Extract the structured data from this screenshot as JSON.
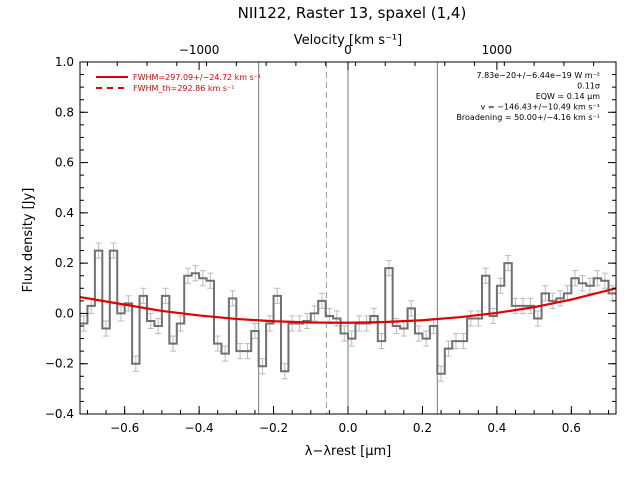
{
  "chart_data": {
    "type": "line",
    "title": "NII122, Raster 13, spaxel (1,4)",
    "xlabel": "λ−λrest [μm]",
    "ylabel": "Flux density [Jy]",
    "top_axis_label": "Velocity [km s⁻¹]",
    "xlim": [
      -0.72,
      0.72
    ],
    "ylim": [
      -0.4,
      1.0
    ],
    "x_ticks": [
      -0.6,
      -0.4,
      -0.2,
      0.0,
      0.2,
      0.4,
      0.6
    ],
    "x_tick_labels": [
      "−0.6",
      "−0.4",
      "−0.2",
      "0.0",
      "0.2",
      "0.4",
      "0.6"
    ],
    "y_ticks": [
      -0.4,
      -0.2,
      0.0,
      0.2,
      0.4,
      0.6,
      0.8,
      1.0
    ],
    "y_tick_labels": [
      "−0.4",
      "−0.2",
      "0.0",
      "0.2",
      "0.4",
      "0.6",
      "0.8",
      "1.0"
    ],
    "top_tick_labels": [
      "−1000",
      "0",
      "1000"
    ],
    "top_ticks_um": [
      -0.4,
      0.0,
      0.4
    ],
    "vertical_lines": [
      -0.24,
      0.0,
      0.24
    ],
    "dashed_line": -0.058,
    "legend": [
      {
        "label": "FWHM=297.09+/−24.72 km s⁻¹",
        "style": "solid",
        "color": "#e00000"
      },
      {
        "label": "FWHM_th=292.86 km s⁻¹",
        "style": "dashed",
        "color": "#e00000"
      }
    ],
    "annotations": [
      "7.83e−20+/−6.44e−19 W m⁻²",
      "0.11σ",
      "EQW = 0.14 μm",
      "v = −146.43+/−10.49 km s⁻¹",
      "Broadening = 50.00+/−4.16 km s⁻¹"
    ],
    "series": [
      {
        "name": "data",
        "style": "step",
        "color": "#707070",
        "x": [
          -0.71,
          -0.69,
          -0.67,
          -0.65,
          -0.63,
          -0.61,
          -0.59,
          -0.57,
          -0.55,
          -0.53,
          -0.51,
          -0.49,
          -0.47,
          -0.45,
          -0.43,
          -0.41,
          -0.39,
          -0.37,
          -0.35,
          -0.33,
          -0.31,
          -0.29,
          -0.27,
          -0.25,
          -0.23,
          -0.21,
          -0.19,
          -0.17,
          -0.15,
          -0.13,
          -0.11,
          -0.09,
          -0.07,
          -0.05,
          -0.03,
          -0.01,
          0.01,
          0.03,
          0.05,
          0.07,
          0.09,
          0.11,
          0.13,
          0.15,
          0.17,
          0.19,
          0.21,
          0.23,
          0.25,
          0.27,
          0.29,
          0.31,
          0.33,
          0.35,
          0.37,
          0.39,
          0.41,
          0.43,
          0.45,
          0.47,
          0.49,
          0.51,
          0.53,
          0.55,
          0.57,
          0.59,
          0.61,
          0.63,
          0.65,
          0.67,
          0.69,
          0.71
        ],
        "y": [
          -0.04,
          0.03,
          0.25,
          -0.06,
          0.25,
          0.0,
          0.04,
          -0.2,
          0.07,
          -0.03,
          -0.05,
          0.07,
          -0.12,
          -0.04,
          0.15,
          0.16,
          0.14,
          0.13,
          -0.12,
          -0.16,
          0.06,
          -0.15,
          -0.15,
          -0.07,
          -0.21,
          -0.04,
          0.07,
          -0.23,
          -0.04,
          -0.04,
          -0.03,
          0.0,
          0.05,
          -0.01,
          -0.02,
          -0.08,
          -0.1,
          -0.04,
          -0.04,
          -0.01,
          -0.11,
          0.18,
          -0.05,
          -0.06,
          0.02,
          -0.08,
          -0.1,
          -0.05,
          -0.24,
          -0.14,
          -0.11,
          -0.11,
          -0.02,
          -0.02,
          0.15,
          -0.01,
          0.11,
          0.2,
          0.03,
          0.03,
          0.03,
          -0.02,
          0.08,
          0.05,
          0.06,
          0.08,
          0.14,
          0.12,
          0.11,
          0.14,
          0.13,
          0.08
        ],
        "error": 0.03
      },
      {
        "name": "fit",
        "style": "line",
        "color": "#e00000",
        "x": [
          -0.72,
          -0.6,
          -0.5,
          -0.4,
          -0.3,
          -0.2,
          -0.1,
          0.0,
          0.1,
          0.2,
          0.3,
          0.4,
          0.5,
          0.6,
          0.72
        ],
        "y": [
          0.065,
          0.035,
          0.01,
          -0.008,
          -0.022,
          -0.031,
          -0.036,
          -0.037,
          -0.034,
          -0.027,
          -0.015,
          0.002,
          0.025,
          0.055,
          0.1
        ]
      }
    ]
  }
}
